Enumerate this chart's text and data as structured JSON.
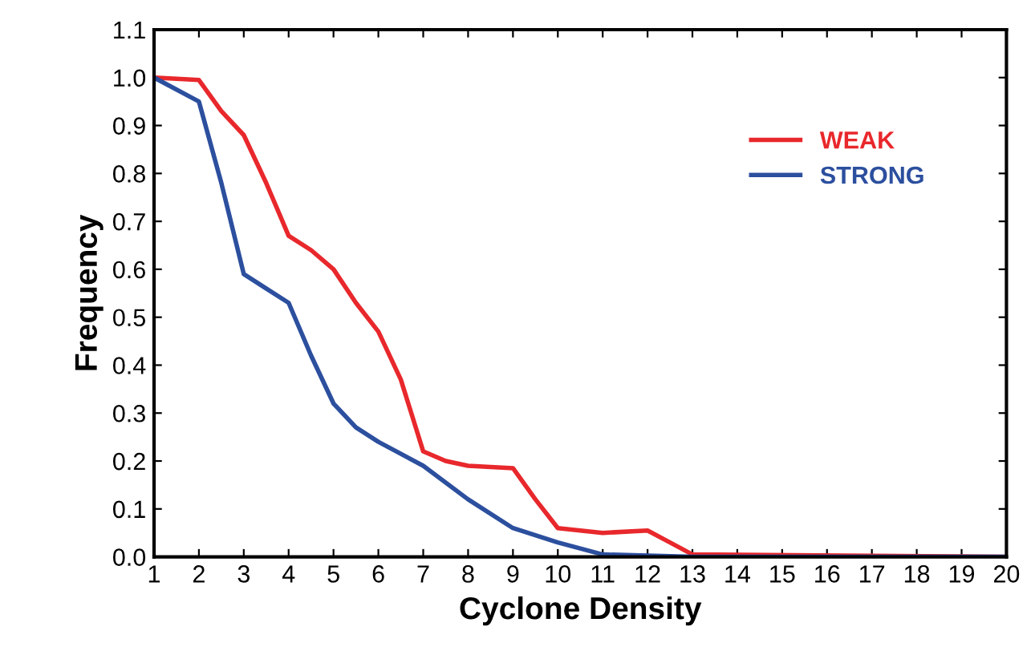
{
  "chart_data": {
    "type": "line",
    "xlabel": "Cyclone Density",
    "ylabel": "Frequency",
    "xlim": [
      1,
      20
    ],
    "xticks": [
      1,
      2,
      3,
      4,
      5,
      6,
      7,
      8,
      9,
      10,
      11,
      12,
      13,
      14,
      15,
      16,
      17,
      18,
      19,
      20
    ],
    "ylim": [
      0,
      1.1
    ],
    "yticks": [
      {
        "value": 0,
        "label": "0.0"
      },
      {
        "value": 0.1,
        "label": "0.1"
      },
      {
        "value": 0.2,
        "label": "0.2"
      },
      {
        "value": 0.3,
        "label": "0.3"
      },
      {
        "value": 0.4,
        "label": "0.4"
      },
      {
        "value": 0.5,
        "label": "0.5"
      },
      {
        "value": 0.6,
        "label": "0.6"
      },
      {
        "value": 0.7,
        "label": "0.7"
      },
      {
        "value": 0.8,
        "label": "0.8"
      },
      {
        "value": 0.9,
        "label": "0.9"
      },
      {
        "value": 1.0,
        "label": "1.0"
      },
      {
        "value": 1.1,
        "label": "1.1"
      }
    ],
    "grid": false,
    "legend": "top right",
    "marker": "none",
    "line_style": "solid",
    "series": [
      {
        "name": "WEAK",
        "color": "#e8282c",
        "x": [
          1,
          2,
          2.5,
          3,
          3.5,
          4,
          4.5,
          5,
          5.5,
          6,
          6.5,
          7,
          7.5,
          8,
          9,
          9.5,
          10,
          11,
          12,
          12.5,
          13,
          17,
          20
        ],
        "values": [
          1.0,
          0.995,
          0.93,
          0.88,
          0.78,
          0.67,
          0.64,
          0.6,
          0.53,
          0.47,
          0.37,
          0.22,
          0.2,
          0.19,
          0.185,
          0.12,
          0.06,
          0.05,
          0.055,
          0.03,
          0.005,
          0.002,
          0
        ]
      },
      {
        "name": "STRONG",
        "color": "#2c4f9e",
        "x": [
          1,
          2,
          2.5,
          3,
          3.5,
          4,
          4.5,
          5,
          5.5,
          6,
          7,
          8,
          9,
          10,
          11,
          13,
          20
        ],
        "values": [
          1.0,
          0.95,
          0.78,
          0.59,
          0.56,
          0.53,
          0.42,
          0.32,
          0.27,
          0.24,
          0.19,
          0.12,
          0.06,
          0.03,
          0.005,
          0,
          0
        ]
      }
    ]
  }
}
